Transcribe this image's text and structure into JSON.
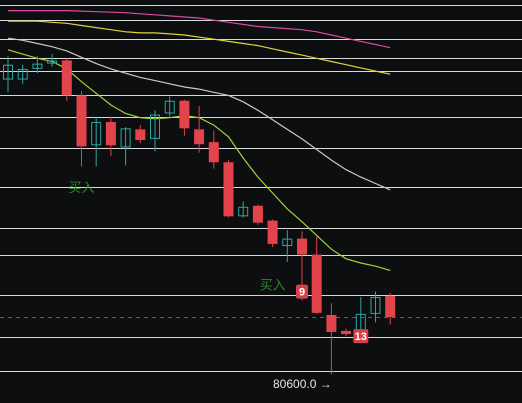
{
  "chart_data": {
    "type": "candlestick",
    "ylim": [
      80250,
      84050
    ],
    "horizontal_levels": [
      84000,
      83860,
      83680,
      83500,
      83380,
      83150,
      82950,
      82650,
      82290,
      81900,
      81650,
      81270,
      80870,
      80550
    ],
    "dashed_level": 81060,
    "candles": [
      {
        "o": 83440,
        "h": 83520,
        "c": 83300,
        "l": 83180,
        "color": "bull"
      },
      {
        "o": 83300,
        "h": 83440,
        "c": 83400,
        "l": 83260,
        "color": "bull"
      },
      {
        "o": 83400,
        "h": 83520,
        "c": 83450,
        "l": 83360,
        "color": "bull"
      },
      {
        "o": 83450,
        "h": 83540,
        "c": 83480,
        "l": 83420,
        "color": "bull"
      },
      {
        "o": 83480,
        "h": 83500,
        "c": 83150,
        "l": 83100,
        "color": "bear"
      },
      {
        "o": 83150,
        "h": 83190,
        "c": 82670,
        "l": 82480,
        "color": "bear"
      },
      {
        "o": 82680,
        "h": 82950,
        "c": 82900,
        "l": 82480,
        "color": "bull"
      },
      {
        "o": 82900,
        "h": 82950,
        "c": 82680,
        "l": 82580,
        "color": "bear"
      },
      {
        "o": 82660,
        "h": 82850,
        "c": 82840,
        "l": 82490,
        "color": "bull"
      },
      {
        "o": 82830,
        "h": 82870,
        "c": 82730,
        "l": 82700,
        "color": "bear"
      },
      {
        "o": 82740,
        "h": 83010,
        "c": 82970,
        "l": 82620,
        "color": "bull"
      },
      {
        "o": 82980,
        "h": 83140,
        "c": 83100,
        "l": 82950,
        "color": "bull"
      },
      {
        "o": 83100,
        "h": 83110,
        "c": 82840,
        "l": 82770,
        "color": "bear"
      },
      {
        "o": 82830,
        "h": 83050,
        "c": 82690,
        "l": 82610,
        "color": "bear"
      },
      {
        "o": 82710,
        "h": 82820,
        "c": 82520,
        "l": 82460,
        "color": "bear"
      },
      {
        "o": 82520,
        "h": 82540,
        "c": 82010,
        "l": 82000,
        "color": "bear"
      },
      {
        "o": 82010,
        "h": 82150,
        "c": 82100,
        "l": 82000,
        "color": "bull"
      },
      {
        "o": 82110,
        "h": 82120,
        "c": 81950,
        "l": 81930,
        "color": "bear"
      },
      {
        "o": 81970,
        "h": 81980,
        "c": 81750,
        "l": 81720,
        "color": "bear"
      },
      {
        "o": 81730,
        "h": 81880,
        "c": 81800,
        "l": 81580,
        "color": "bull"
      },
      {
        "o": 81800,
        "h": 81870,
        "c": 81650,
        "l": 81220,
        "color": "bear"
      },
      {
        "o": 81650,
        "h": 81820,
        "c": 81100,
        "l": 81090,
        "color": "bear"
      },
      {
        "o": 81080,
        "h": 81190,
        "c": 80920,
        "l": 80520,
        "color": "bear"
      },
      {
        "o": 80930,
        "h": 80950,
        "c": 80900,
        "l": 80880,
        "color": "bear"
      },
      {
        "o": 80920,
        "h": 81250,
        "c": 81090,
        "l": 80920,
        "color": "bull"
      },
      {
        "o": 81090,
        "h": 81300,
        "c": 81250,
        "l": 81010,
        "color": "bull"
      },
      {
        "o": 81260,
        "h": 81290,
        "c": 81060,
        "l": 80990,
        "color": "bear"
      }
    ],
    "series": [
      {
        "values": [
          83580,
          83540,
          83500,
          83470,
          83400,
          83280,
          83170,
          83060,
          82980,
          82940,
          82930,
          82940,
          82960,
          82940,
          82870,
          82760,
          82560,
          82380,
          82230,
          82080,
          81960,
          81830,
          81700,
          81610,
          81570,
          81540,
          81500
        ],
        "color": "#a4d13a"
      },
      {
        "values": [
          83690,
          83670,
          83640,
          83610,
          83570,
          83510,
          83450,
          83400,
          83360,
          83320,
          83290,
          83260,
          83230,
          83210,
          83180,
          83150,
          83090,
          83010,
          82920,
          82830,
          82740,
          82640,
          82540,
          82450,
          82380,
          82320,
          82260
        ],
        "color": "#c9c9c9"
      },
      {
        "values": [
          83850,
          83850,
          83850,
          83840,
          83830,
          83810,
          83790,
          83770,
          83750,
          83740,
          83740,
          83730,
          83720,
          83700,
          83680,
          83660,
          83640,
          83620,
          83590,
          83560,
          83530,
          83500,
          83470,
          83440,
          83410,
          83380,
          83350
        ],
        "color": "#e3d33a"
      },
      {
        "values": [
          83950,
          83950,
          83950,
          83950,
          83950,
          83945,
          83940,
          83935,
          83930,
          83920,
          83910,
          83900,
          83890,
          83880,
          83860,
          83840,
          83820,
          83800,
          83790,
          83780,
          83770,
          83750,
          83720,
          83690,
          83660,
          83630,
          83600
        ],
        "color": "#d84aa3"
      }
    ],
    "annotations": [
      {
        "text": "买入",
        "at": 5,
        "y": 82240,
        "color": "#2d8a2a"
      },
      {
        "text": "买入",
        "at": 18,
        "y": 81320,
        "color": "#2d8a2a"
      },
      {
        "text": "9",
        "at": 20,
        "y": 81300,
        "color": "#d84049"
      },
      {
        "text": "13",
        "at": 24,
        "y": 80880,
        "color": "#d84049"
      }
    ],
    "price_label": "80600.0 →",
    "colors": {
      "bull": "#2aa8a1",
      "bear": "#e3434b",
      "grid": "#d9d9d9",
      "dashed": "#b53a3a",
      "background": "#0d0e10"
    }
  }
}
